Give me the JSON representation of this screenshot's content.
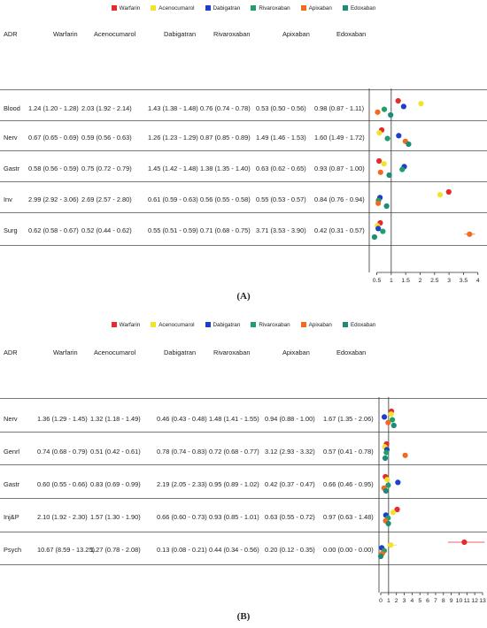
{
  "captions": [
    "(A)",
    "(B)"
  ],
  "legend": [
    {
      "name": "Warfarin",
      "color": "#e52b2b"
    },
    {
      "name": "Acenocumarol",
      "color": "#f2e22a"
    },
    {
      "name": "Dabigatran",
      "color": "#1f3fc9"
    },
    {
      "name": "Rivaroxaban",
      "color": "#1fa06a"
    },
    {
      "name": "Apixaban",
      "color": "#f26a1f"
    },
    {
      "name": "Edoxaban",
      "color": "#1e8a78"
    }
  ],
  "chart_data": [
    {
      "type": "scatter",
      "panel": "A",
      "headers": [
        "ADR",
        "Warfarin",
        "Acenocumarol",
        "Dabigatran",
        "Rivaroxaban",
        "Apixaban",
        "Edoxaban"
      ],
      "rows": [
        {
          "label": "Blood",
          "cells": [
            "1.24 (1.20 - 1.28)",
            "2.03 (1.92 - 2.14)",
            "1.43 (1.38 - 1.48)",
            "0.76 (0.74 - 0.78)",
            "0.53 (0.50 - 0.56)",
            "0.98 (0.87 - 1.11)"
          ],
          "values": [
            1.24,
            2.03,
            1.43,
            0.76,
            0.53,
            0.98
          ]
        },
        {
          "label": "Nerv",
          "cells": [
            "0.67 (0.65 - 0.69)",
            "0.59 (0.56 - 0.63)",
            "1.26 (1.23 - 1.29)",
            "0.87 (0.85 - 0.89)",
            "1.49 (1.46 - 1.53)",
            "1.60 (1.49 - 1.72)"
          ],
          "values": [
            0.67,
            0.59,
            1.26,
            0.87,
            1.49,
            1.6
          ]
        },
        {
          "label": "Gastr",
          "cells": [
            "0.58 (0.56 - 0.59)",
            "0.75 (0.72 - 0.79)",
            "1.45 (1.42 - 1.48)",
            "1.38 (1.35 - 1.40)",
            "0.63 (0.62 - 0.65)",
            "0.93 (0.87 - 1.00)"
          ],
          "values": [
            0.58,
            0.75,
            1.45,
            1.38,
            0.63,
            0.93
          ]
        },
        {
          "label": "Inv",
          "cells": [
            "2.99 (2.92 - 3.06)",
            "2.69 (2.57 - 2.80)",
            "0.61 (0.59 - 0.63)",
            "0.56 (0.55 - 0.58)",
            "0.55 (0.53 - 0.57)",
            "0.84 (0.76 - 0.94)"
          ],
          "values": [
            2.99,
            2.69,
            0.61,
            0.56,
            0.55,
            0.84
          ]
        },
        {
          "label": "Surg",
          "cells": [
            "0.62 (0.58 - 0.67)",
            "0.52 (0.44 - 0.62)",
            "0.55 (0.51 - 0.59)",
            "0.71 (0.68 - 0.75)",
            "3.71 (3.53 - 3.90)",
            "0.42 (0.31 - 0.57)"
          ],
          "values": [
            0.62,
            0.52,
            0.55,
            0.71,
            3.71,
            0.42
          ],
          "ci": [
            [
              0.58,
              0.67
            ],
            [
              0.44,
              0.62
            ],
            [
              0.51,
              0.59
            ],
            [
              0.68,
              0.75
            ],
            [
              3.53,
              3.9
            ],
            [
              0.31,
              0.57
            ]
          ]
        }
      ],
      "xticks": [
        0.5,
        1,
        1.5,
        2,
        2.5,
        3,
        3.5,
        4
      ],
      "xtick_labels": [
        "0.5",
        "1",
        "1.5",
        "2",
        "2.5",
        "3",
        "3.5",
        "4"
      ],
      "xlim": [
        0.3,
        4.1
      ],
      "reference_line": 1
    },
    {
      "type": "scatter",
      "panel": "B",
      "headers": [
        "ADR",
        "Warfarin",
        "Acenocumarol",
        "Dabigatran",
        "Rivaroxaban",
        "Apixaban",
        "Edoxaban"
      ],
      "rows": [
        {
          "label": "Nerv",
          "cells": [
            "1.36 (1.29 - 1.45)",
            "1.32 (1.18 - 1.49)",
            "0.46 (0.43 - 0.48)",
            "1.48 (1.41 - 1.55)",
            "0.94 (0.88 - 1.00)",
            "1.67 (1.35 - 2.06)"
          ],
          "values": [
            1.36,
            1.32,
            0.46,
            1.48,
            0.94,
            1.67
          ]
        },
        {
          "label": "Genrl",
          "cells": [
            "0.74 (0.68 - 0.79)",
            "0.51 (0.42 - 0.61)",
            "0.78 (0.74 - 0.83)",
            "0.72 (0.68 - 0.77)",
            "3.12 (2.93 - 3.32)",
            "0.57 (0.41 - 0.78)"
          ],
          "values": [
            0.74,
            0.51,
            0.78,
            0.72,
            3.12,
            0.57
          ]
        },
        {
          "label": "Gastr",
          "cells": [
            "0.60 (0.55 - 0.66)",
            "0.83 (0.69 - 0.99)",
            "2.19 (2.05 - 2.33)",
            "0.95 (0.89 - 1.02)",
            "0.42 (0.37 - 0.47)",
            "0.66 (0.46 - 0.95)"
          ],
          "values": [
            0.6,
            0.83,
            2.19,
            0.95,
            0.42,
            0.66
          ]
        },
        {
          "label": "Inj&P",
          "cells": [
            "2.10 (1.92 - 2.30)",
            "1.57 (1.30 - 1.90)",
            "0.66 (0.60 - 0.73)",
            "0.93 (0.85 - 1.01)",
            "0.63 (0.55 - 0.72)",
            "0.97 (0.63 - 1.48)"
          ],
          "values": [
            2.1,
            1.57,
            0.66,
            0.93,
            0.63,
            0.97
          ]
        },
        {
          "label": "Psych",
          "cells": [
            "10.67 (8.59 - 13.25)",
            "1.27 (0.78 - 2.08)",
            "0.13 (0.08 - 0.21)",
            "0.44 (0.34 - 0.56)",
            "0.20 (0.12 - 0.35)",
            "0.00 (0.00 - 0.00)"
          ],
          "values": [
            10.67,
            1.27,
            0.13,
            0.44,
            0.2,
            0.0
          ],
          "ci": [
            [
              8.59,
              13.25
            ],
            [
              0.78,
              2.08
            ],
            [
              0.08,
              0.21
            ],
            [
              0.34,
              0.56
            ],
            [
              0.12,
              0.35
            ],
            [
              0.0,
              0.0
            ]
          ]
        }
      ],
      "xticks": [
        0,
        1,
        2,
        3,
        4,
        5,
        6,
        7,
        8,
        9,
        10,
        11,
        12,
        13
      ],
      "xtick_labels": [
        "0",
        "1",
        "2",
        "3",
        "4",
        "5",
        "6",
        "7",
        "8",
        "9",
        "10",
        "11",
        "12",
        "13"
      ],
      "xlim": [
        0,
        13
      ],
      "reference_line": 1
    }
  ]
}
